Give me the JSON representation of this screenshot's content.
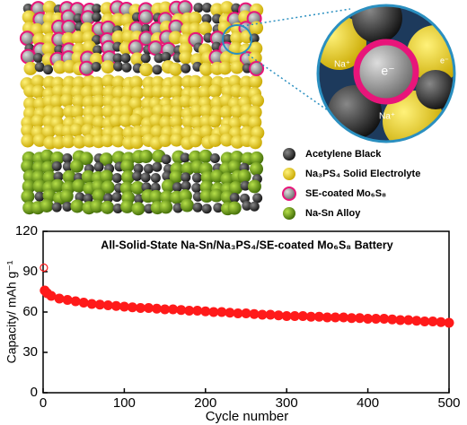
{
  "schematic": {
    "legend": [
      "Acetylene Black",
      "Na₃PS₄ Solid Electrolyte",
      "SE-coated Mo₆S₈",
      "Na-Sn Alloy"
    ],
    "zoom_labels": {
      "na_top": "Na⁺",
      "na_bottom": "Na⁺",
      "electron_center": "e⁻",
      "electron_side": "e⁻"
    }
  },
  "chart_data": {
    "type": "scatter",
    "title": "All-Solid-State Na-Sn/Na₃PS₄/SE-coated Mo₆S₈ Battery",
    "x_label": "Cycle number",
    "y_label": "Capacity/ mAh g⁻¹",
    "x": [
      1,
      2,
      5,
      10,
      20,
      30,
      40,
      50,
      60,
      70,
      80,
      90,
      100,
      110,
      120,
      130,
      140,
      150,
      160,
      170,
      180,
      190,
      200,
      210,
      220,
      230,
      240,
      250,
      260,
      270,
      280,
      290,
      300,
      310,
      320,
      330,
      340,
      350,
      360,
      370,
      380,
      390,
      400,
      410,
      420,
      430,
      440,
      450,
      460,
      470,
      480,
      490,
      500
    ],
    "values": [
      93,
      76,
      74,
      72,
      70,
      69,
      68,
      67,
      66,
      65.5,
      65,
      64.5,
      64,
      63.5,
      63,
      63,
      62.5,
      62,
      62,
      61.5,
      61,
      61,
      60.5,
      60,
      60,
      59.5,
      59,
      59,
      58.5,
      58,
      58,
      57.5,
      57,
      57,
      57,
      56.5,
      56.5,
      56,
      56,
      56,
      55.5,
      55.5,
      55,
      55,
      55,
      54.5,
      54,
      54,
      53.5,
      53,
      53,
      52.5,
      52
    ],
    "color": "#ff1a1a",
    "xlim": [
      0,
      500
    ],
    "ylim": [
      0,
      120
    ],
    "xticks": [
      0,
      100,
      200,
      300,
      400,
      500
    ],
    "yticks": [
      0,
      30,
      60,
      90,
      120
    ]
  }
}
